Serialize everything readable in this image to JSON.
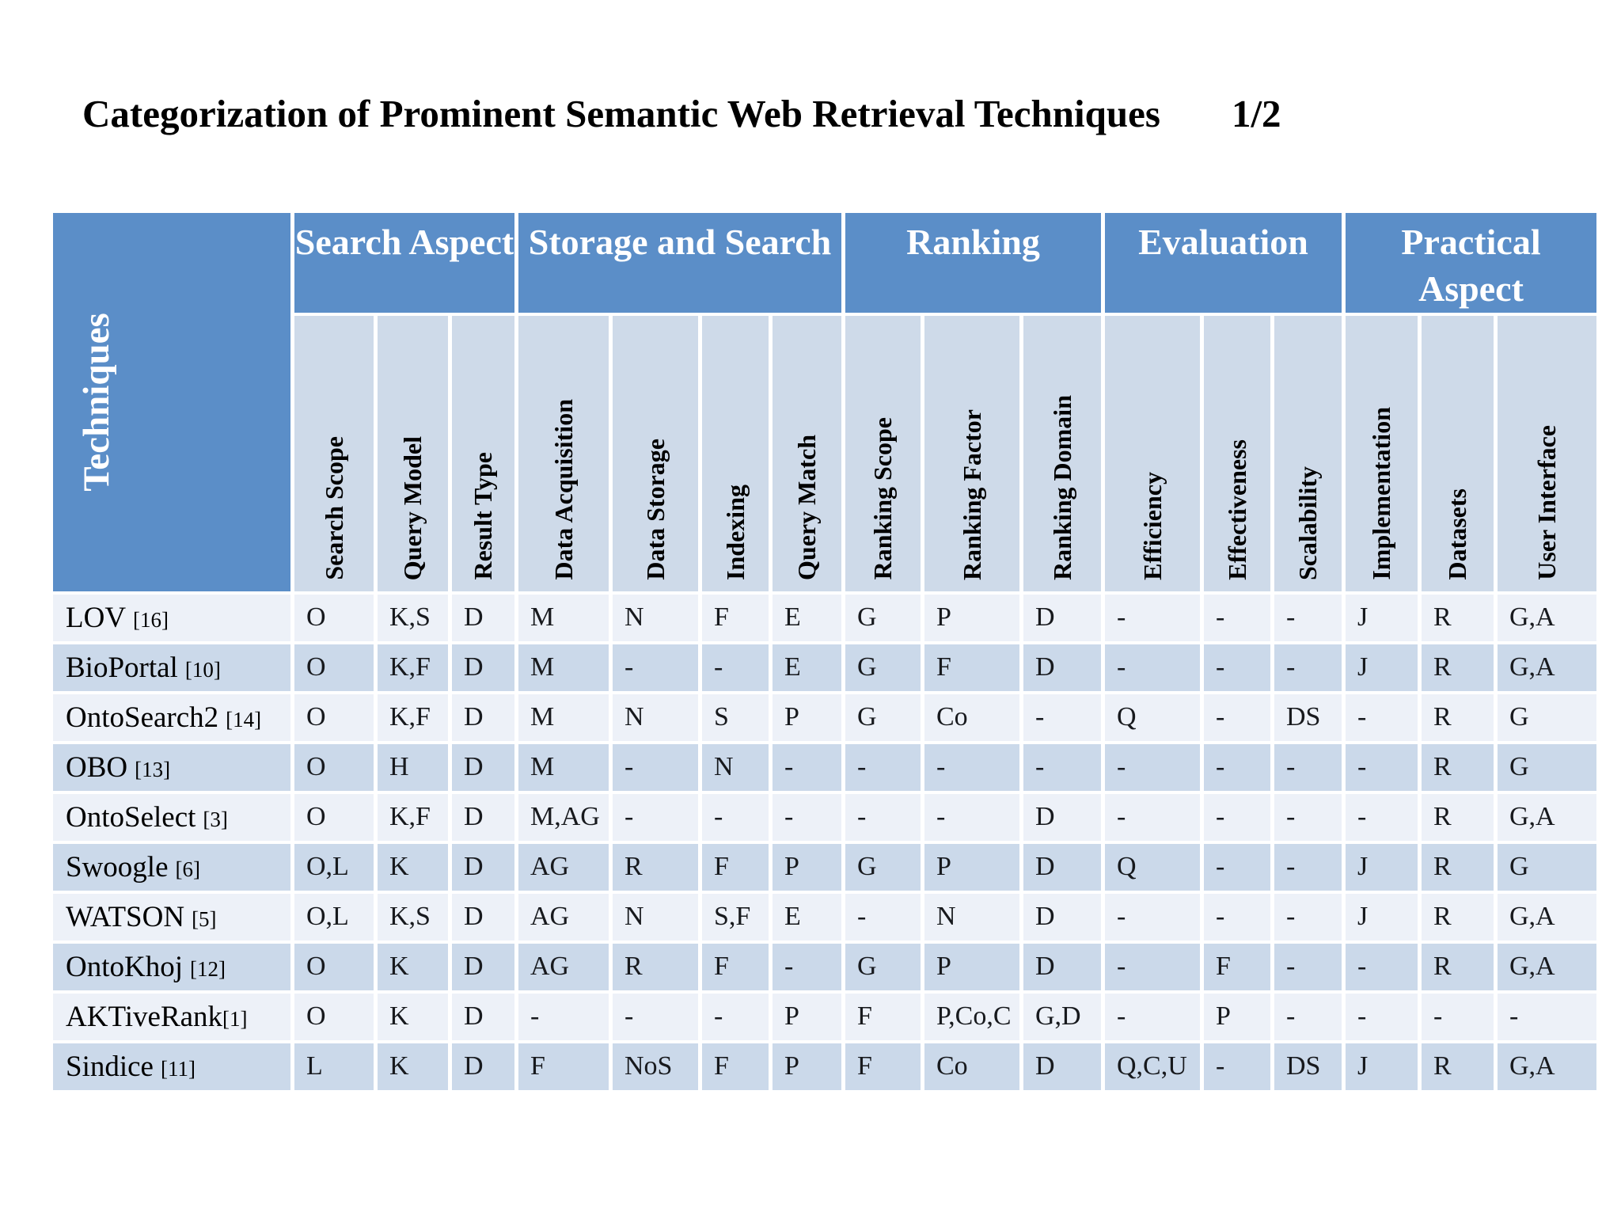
{
  "slide": {
    "title": "Categorization of Prominent Semantic Web Retrieval Techniques",
    "page_indicator": "1/2"
  },
  "colors": {
    "header_blue": "#5b8ec8",
    "column_header_bg": "#cedae9",
    "row_odd_bg": "#edf1f8",
    "row_even_bg": "#cbd9ea",
    "header_text": "#ffffff",
    "cell_text": "#17191d"
  },
  "table": {
    "corner_header": "Techniques",
    "groups": [
      {
        "label": "Search Aspect",
        "span": 3
      },
      {
        "label": "Storage and Search",
        "span": 4
      },
      {
        "label": "Ranking",
        "span": 3
      },
      {
        "label": "Evaluation",
        "span": 3
      },
      {
        "label": "Practical Aspect",
        "span": 3
      }
    ],
    "columns": [
      "Search Scope",
      "Query Model",
      "Result Type",
      "Data Acquisition",
      "Data Storage",
      "Indexing",
      "Query Match",
      "Ranking Scope",
      "Ranking Factor",
      "Ranking Domain",
      "Efficiency",
      "Effectiveness",
      "Scalability",
      "Implementation",
      "Datasets",
      "User Interface"
    ],
    "rows": [
      {
        "technique": "LOV",
        "ref": "[16]",
        "space": true,
        "values": [
          "O",
          "K,S",
          "D",
          "M",
          "N",
          "F",
          "E",
          "G",
          "P",
          "D",
          "-",
          "-",
          "-",
          "J",
          "R",
          "G,A"
        ]
      },
      {
        "technique": "BioPortal",
        "ref": "[10]",
        "space": true,
        "values": [
          "O",
          "K,F",
          "D",
          "M",
          "-",
          "-",
          "E",
          "G",
          "F",
          "D",
          "-",
          "-",
          "-",
          "J",
          "R",
          "G,A"
        ]
      },
      {
        "technique": "OntoSearch2",
        "ref": "[14]",
        "space": true,
        "values": [
          "O",
          "K,F",
          "D",
          "M",
          "N",
          "S",
          "P",
          "G",
          "Co",
          "-",
          "Q",
          "-",
          "DS",
          "-",
          "R",
          "G"
        ]
      },
      {
        "technique": "OBO",
        "ref": "[13]",
        "space": true,
        "values": [
          "O",
          "H",
          "D",
          "M",
          "-",
          "N",
          "-",
          "-",
          "-",
          "-",
          "-",
          "-",
          "-",
          "-",
          "R",
          "G"
        ]
      },
      {
        "technique": "OntoSelect",
        "ref": "[3]",
        "space": true,
        "values": [
          "O",
          "K,F",
          "D",
          "M,AG",
          "-",
          "-",
          "-",
          "-",
          "-",
          "D",
          "-",
          "-",
          "-",
          "-",
          "R",
          "G,A"
        ]
      },
      {
        "technique": "Swoogle",
        "ref": "[6]",
        "space": true,
        "values": [
          "O,L",
          "K",
          "D",
          "AG",
          "R",
          "F",
          "P",
          "G",
          "P",
          "D",
          "Q",
          "-",
          "-",
          "J",
          "R",
          "G"
        ]
      },
      {
        "technique": "WATSON",
        "ref": "[5]",
        "space": true,
        "values": [
          "O,L",
          "K,S",
          "D",
          "AG",
          "N",
          "S,F",
          "E",
          "-",
          "N",
          "D",
          "-",
          "-",
          "-",
          "J",
          "R",
          "G,A"
        ]
      },
      {
        "technique": "OntoKhoj",
        "ref": "[12]",
        "space": true,
        "values": [
          "O",
          "K",
          "D",
          "AG",
          "R",
          "F",
          "-",
          "G",
          "P",
          "D",
          "-",
          "F",
          "-",
          "-",
          "R",
          "G,A"
        ]
      },
      {
        "technique": "AKTiveRank",
        "ref": "[1]",
        "space": false,
        "values": [
          "O",
          "K",
          "D",
          "-",
          "-",
          "-",
          "P",
          "F",
          "P,Co,C",
          "G,D",
          "-",
          "P",
          "-",
          "-",
          "-",
          "-"
        ]
      },
      {
        "technique": "Sindice",
        "ref": "[11]",
        "space": true,
        "values": [
          "L",
          "K",
          "D",
          "F",
          "NoS",
          "F",
          "P",
          "F",
          "Co",
          "D",
          "Q,C,U",
          "-",
          "DS",
          "J",
          "R",
          "G,A"
        ]
      }
    ]
  }
}
